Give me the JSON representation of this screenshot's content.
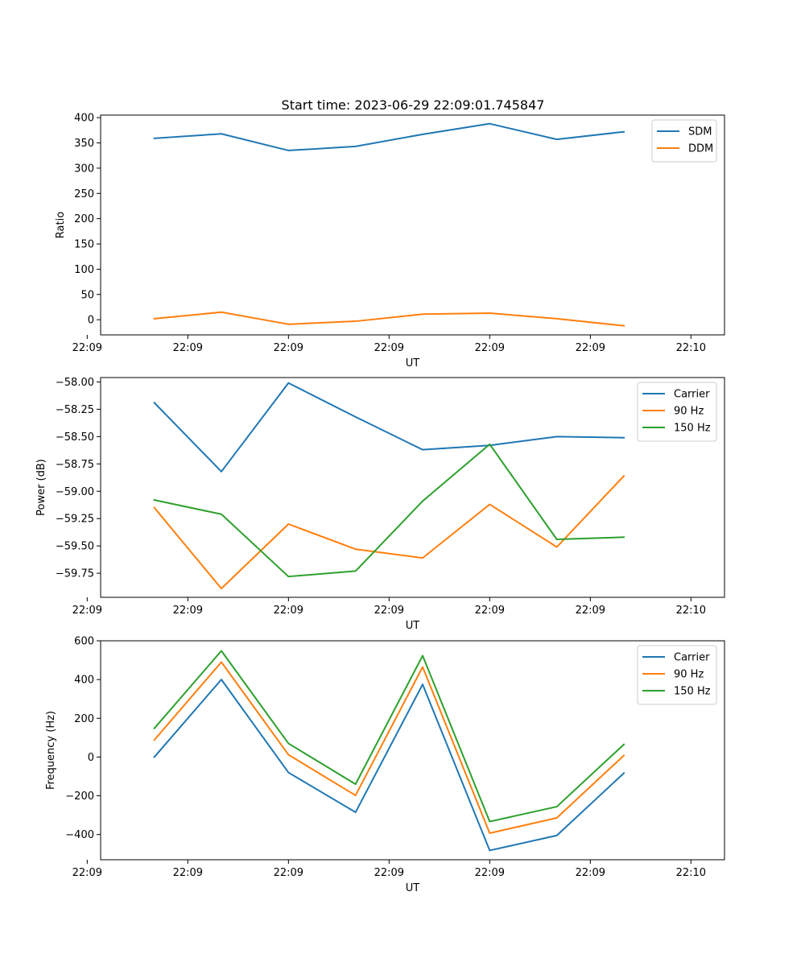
{
  "figure": {
    "title": "Start time: 2023-06-29 22:09:01.745847"
  },
  "chart_data": [
    {
      "type": "line",
      "title": "Start time: 2023-06-29 22:09:01.745847",
      "xlabel": "UT",
      "ylabel": "Ratio",
      "x": [
        1,
        2,
        3,
        4,
        5,
        6,
        7,
        8
      ],
      "xlim": [
        0.2,
        9.5
      ],
      "xticks": [
        0,
        1.5,
        3,
        4.5,
        6,
        7.5,
        9
      ],
      "xtick_labels": [
        "22:09",
        "22:09",
        "22:09",
        "22:09",
        "22:09",
        "22:09",
        "22:10"
      ],
      "ylim": [
        -30,
        405
      ],
      "yticks": [
        0,
        50,
        100,
        150,
        200,
        250,
        300,
        350,
        400
      ],
      "ytick_labels": [
        "0",
        "50",
        "100",
        "150",
        "200",
        "250",
        "300",
        "350",
        "400"
      ],
      "grid": false,
      "legend_position": "top-right",
      "series": [
        {
          "name": "SDM",
          "color": "#1f77b4",
          "values": [
            359,
            368,
            335,
            343,
            367,
            388,
            357,
            372
          ]
        },
        {
          "name": "DDM",
          "color": "#ff7f0e",
          "values": [
            2,
            15,
            -9,
            -3,
            11,
            13,
            2,
            -12
          ]
        }
      ]
    },
    {
      "type": "line",
      "xlabel": "UT",
      "ylabel": "Power (dB)",
      "x": [
        1,
        2,
        3,
        4,
        5,
        6,
        7,
        8
      ],
      "xlim": [
        0.2,
        9.5
      ],
      "xticks": [
        0,
        1.5,
        3,
        4.5,
        6,
        7.5,
        9
      ],
      "xtick_labels": [
        "22:09",
        "22:09",
        "22:09",
        "22:09",
        "22:09",
        "22:09",
        "22:10"
      ],
      "ylim": [
        -59.97,
        -57.96
      ],
      "yticks": [
        -59.75,
        -59.5,
        -59.25,
        -59.0,
        -58.75,
        -58.5,
        -58.25,
        -58.0
      ],
      "ytick_labels": [
        "−59.75",
        "−59.50",
        "−59.25",
        "−59.00",
        "−58.75",
        "−58.50",
        "−58.25",
        "−58.00"
      ],
      "grid": false,
      "legend_position": "top-right",
      "series": [
        {
          "name": "Carrier",
          "color": "#1f77b4",
          "values": [
            -58.19,
            -58.82,
            -58.01,
            -58.32,
            -58.62,
            -58.58,
            -58.5,
            -58.51
          ]
        },
        {
          "name": "90 Hz",
          "color": "#ff7f0e",
          "values": [
            -59.15,
            -59.89,
            -59.3,
            -59.53,
            -59.61,
            -59.12,
            -59.51,
            -58.86
          ]
        },
        {
          "name": "150 Hz",
          "color": "#2ca02c",
          "values": [
            -59.08,
            -59.21,
            -59.78,
            -59.73,
            -59.09,
            -58.57,
            -59.44,
            -59.42
          ]
        }
      ]
    },
    {
      "type": "line",
      "xlabel": "UT",
      "ylabel": "Frequency (Hz)",
      "x": [
        1,
        2,
        3,
        4,
        5,
        6,
        7,
        8
      ],
      "xlim": [
        0.2,
        9.5
      ],
      "xticks": [
        0,
        1.5,
        3,
        4.5,
        6,
        7.5,
        9
      ],
      "xtick_labels": [
        "22:09",
        "22:09",
        "22:09",
        "22:09",
        "22:09",
        "22:09",
        "22:10"
      ],
      "ylim": [
        -530,
        600
      ],
      "yticks": [
        -400,
        -200,
        0,
        200,
        400,
        600
      ],
      "ytick_labels": [
        "−400",
        "−200",
        "0",
        "200",
        "400",
        "600"
      ],
      "grid": false,
      "legend_position": "top-right",
      "series": [
        {
          "name": "Carrier",
          "color": "#1f77b4",
          "values": [
            0,
            400,
            -80,
            -285,
            375,
            -482,
            -405,
            -83
          ]
        },
        {
          "name": "90 Hz",
          "color": "#ff7f0e",
          "values": [
            88,
            490,
            12,
            -198,
            465,
            -393,
            -314,
            8
          ]
        },
        {
          "name": "150 Hz",
          "color": "#2ca02c",
          "values": [
            148,
            548,
            70,
            -140,
            523,
            -333,
            -256,
            65
          ]
        }
      ]
    }
  ]
}
